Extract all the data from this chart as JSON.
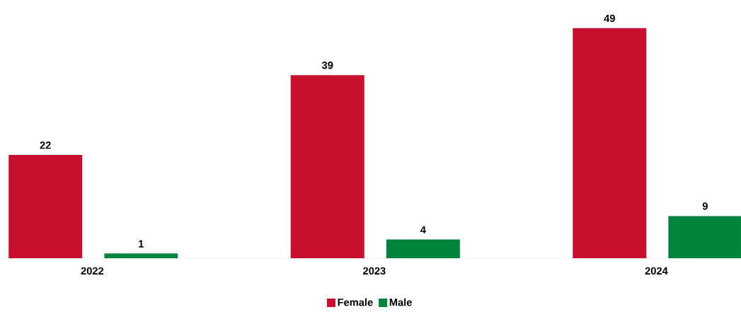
{
  "chart_data": {
    "type": "bar",
    "categories": [
      "2022",
      "2023",
      "2024"
    ],
    "series": [
      {
        "name": "Female",
        "color": "#c8102e",
        "values": [
          22,
          39,
          49
        ]
      },
      {
        "name": "Male",
        "color": "#00843d",
        "values": [
          1,
          4,
          9
        ]
      }
    ],
    "data_labels": true,
    "legend": "bottom"
  }
}
